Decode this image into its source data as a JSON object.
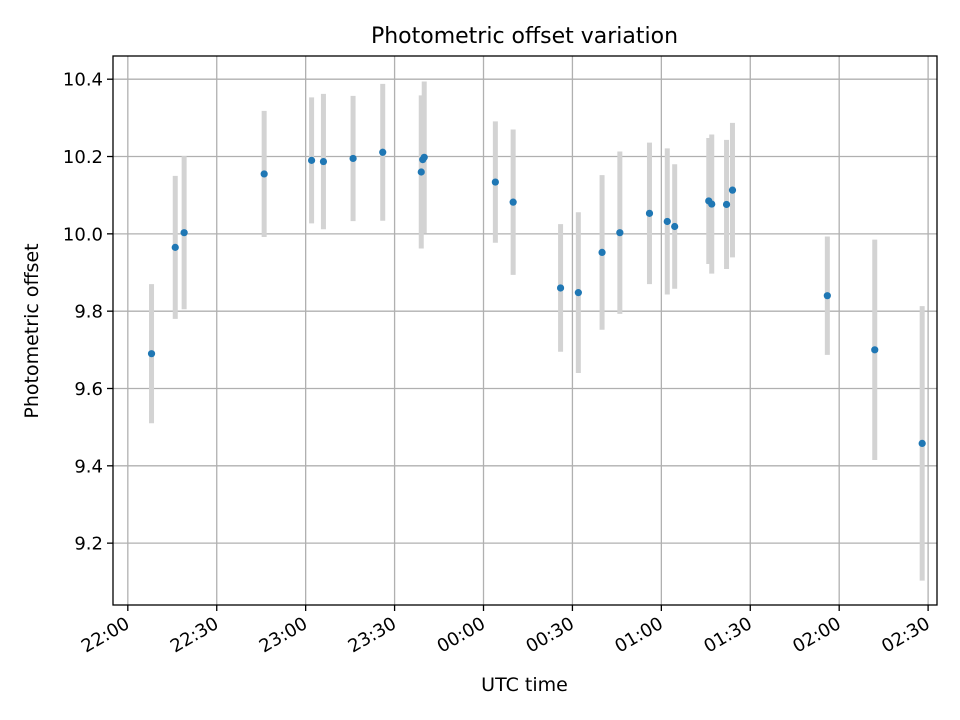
{
  "chart_data": {
    "type": "scatter",
    "title": "Photometric offset variation",
    "xlabel": "UTC time",
    "ylabel": "Photometric offset",
    "x_tick_labels": [
      "22:00",
      "22:30",
      "23:00",
      "23:30",
      "00:00",
      "00:30",
      "01:00",
      "01:30",
      "02:00",
      "02:30"
    ],
    "y_tick_labels": [
      "9.2",
      "9.4",
      "9.6",
      "9.8",
      "10.0",
      "10.2",
      "10.4"
    ],
    "x_range": [
      "21:55",
      "02:33"
    ],
    "ylim": [
      9.04,
      10.46
    ],
    "grid": true,
    "legend": "none",
    "colors": {
      "point": "#1f77b4",
      "errorbar": "#d3d3d3",
      "grid": "#b0b0b0"
    },
    "points": [
      {
        "t": "22:08",
        "y": 9.69,
        "err": 0.18
      },
      {
        "t": "22:16",
        "y": 9.965,
        "err": 0.185
      },
      {
        "t": "22:19",
        "y": 10.003,
        "err": 0.198
      },
      {
        "t": "22:46",
        "y": 10.155,
        "err": 0.163
      },
      {
        "t": "23:02",
        "y": 10.19,
        "err": 0.163
      },
      {
        "t": "23:06",
        "y": 10.187,
        "err": 0.175
      },
      {
        "t": "23:16",
        "y": 10.195,
        "err": 0.162
      },
      {
        "t": "23:26",
        "y": 10.211,
        "err": 0.177
      },
      {
        "t": "23:39",
        "y": 10.16,
        "err": 0.198
      },
      {
        "t": "23:39.5",
        "y": 10.192,
        "err": 0.16
      },
      {
        "t": "23:40",
        "y": 10.198,
        "err": 0.196
      },
      {
        "t": "00:04",
        "y": 10.134,
        "err": 0.157
      },
      {
        "t": "00:10",
        "y": 10.082,
        "err": 0.188
      },
      {
        "t": "00:26",
        "y": 9.86,
        "err": 0.165
      },
      {
        "t": "00:32",
        "y": 9.848,
        "err": 0.208
      },
      {
        "t": "00:40",
        "y": 9.952,
        "err": 0.2
      },
      {
        "t": "00:46",
        "y": 10.003,
        "err": 0.21
      },
      {
        "t": "00:56",
        "y": 10.053,
        "err": 0.183
      },
      {
        "t": "01:02",
        "y": 10.032,
        "err": 0.189
      },
      {
        "t": "01:04.5",
        "y": 10.019,
        "err": 0.161
      },
      {
        "t": "01:16",
        "y": 10.085,
        "err": 0.163
      },
      {
        "t": "01:17",
        "y": 10.077,
        "err": 0.18
      },
      {
        "t": "01:22",
        "y": 10.076,
        "err": 0.167
      },
      {
        "t": "01:24",
        "y": 10.113,
        "err": 0.174
      },
      {
        "t": "01:56",
        "y": 9.84,
        "err": 0.153
      },
      {
        "t": "02:12",
        "y": 9.7,
        "err": 0.285
      },
      {
        "t": "02:28",
        "y": 9.458,
        "err": 0.355
      }
    ]
  }
}
